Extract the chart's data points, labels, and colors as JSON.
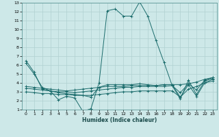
{
  "xlabel": "Humidex (Indice chaleur)",
  "bg_color": "#cde8e8",
  "line_color": "#1a6b6b",
  "grid_color": "#b0d0d0",
  "xlim": [
    -0.5,
    23.5
  ],
  "ylim": [
    1,
    13
  ],
  "xticks": [
    0,
    1,
    2,
    3,
    4,
    5,
    6,
    7,
    8,
    9,
    10,
    11,
    12,
    13,
    14,
    15,
    16,
    17,
    18,
    19,
    20,
    21,
    22,
    23
  ],
  "yticks": [
    1,
    2,
    3,
    4,
    5,
    6,
    7,
    8,
    9,
    10,
    11,
    12,
    13
  ],
  "lines": [
    {
      "x": [
        0,
        1,
        2,
        3,
        4,
        5,
        6,
        7,
        8,
        9,
        10,
        11,
        12,
        13,
        14,
        15,
        16,
        17,
        18,
        19,
        20,
        21,
        22,
        23
      ],
      "y": [
        6.5,
        5.2,
        3.3,
        3.1,
        2.1,
        2.5,
        2.3,
        0.8,
        1.1,
        4.0,
        12.1,
        12.3,
        11.5,
        11.5,
        13.1,
        11.5,
        8.8,
        6.3,
        3.7,
        2.2,
        4.3,
        2.7,
        4.2,
        4.5
      ]
    },
    {
      "x": [
        0,
        1,
        2,
        3,
        4,
        5,
        6,
        7,
        8,
        9,
        10,
        11,
        12,
        13,
        14,
        15,
        16,
        17,
        18,
        19,
        20,
        21,
        22,
        23
      ],
      "y": [
        3.6,
        3.5,
        3.4,
        3.3,
        3.2,
        3.1,
        3.2,
        3.3,
        3.4,
        3.5,
        3.6,
        3.6,
        3.6,
        3.7,
        3.7,
        3.7,
        3.7,
        3.8,
        3.8,
        3.8,
        3.9,
        4.1,
        4.4,
        4.6
      ]
    },
    {
      "x": [
        0,
        1,
        2,
        3,
        4,
        5,
        6,
        7,
        8,
        9,
        10,
        11,
        12,
        13,
        14,
        15,
        16,
        17,
        18,
        19,
        20,
        21,
        22,
        23
      ],
      "y": [
        3.0,
        2.9,
        2.8,
        2.8,
        2.7,
        2.7,
        2.6,
        2.6,
        2.6,
        2.7,
        2.8,
        2.9,
        3.0,
        3.0,
        3.1,
        3.1,
        3.1,
        3.1,
        3.1,
        2.4,
        3.3,
        3.6,
        4.0,
        4.2
      ]
    },
    {
      "x": [
        0,
        1,
        2,
        3,
        4,
        5,
        6,
        7,
        8,
        9,
        10,
        11,
        12,
        13,
        14,
        15,
        16,
        17,
        18,
        19,
        20,
        21,
        22,
        23
      ],
      "y": [
        3.4,
        3.3,
        3.2,
        3.1,
        3.0,
        3.0,
        2.9,
        3.0,
        3.1,
        3.2,
        3.3,
        3.4,
        3.5,
        3.5,
        3.6,
        3.6,
        3.6,
        3.6,
        3.7,
        2.9,
        3.9,
        3.2,
        4.3,
        4.6
      ]
    },
    {
      "x": [
        0,
        1,
        2,
        3,
        4,
        5,
        6,
        7,
        8,
        9,
        10,
        11,
        12,
        13,
        14,
        15,
        16,
        17,
        18,
        19,
        20,
        21,
        22,
        23
      ],
      "y": [
        6.2,
        5.0,
        3.5,
        3.1,
        2.9,
        2.8,
        2.7,
        2.6,
        2.4,
        3.5,
        3.8,
        3.8,
        3.8,
        3.8,
        3.9,
        3.8,
        3.7,
        3.8,
        3.8,
        2.4,
        3.8,
        2.5,
        4.0,
        4.4
      ]
    }
  ]
}
